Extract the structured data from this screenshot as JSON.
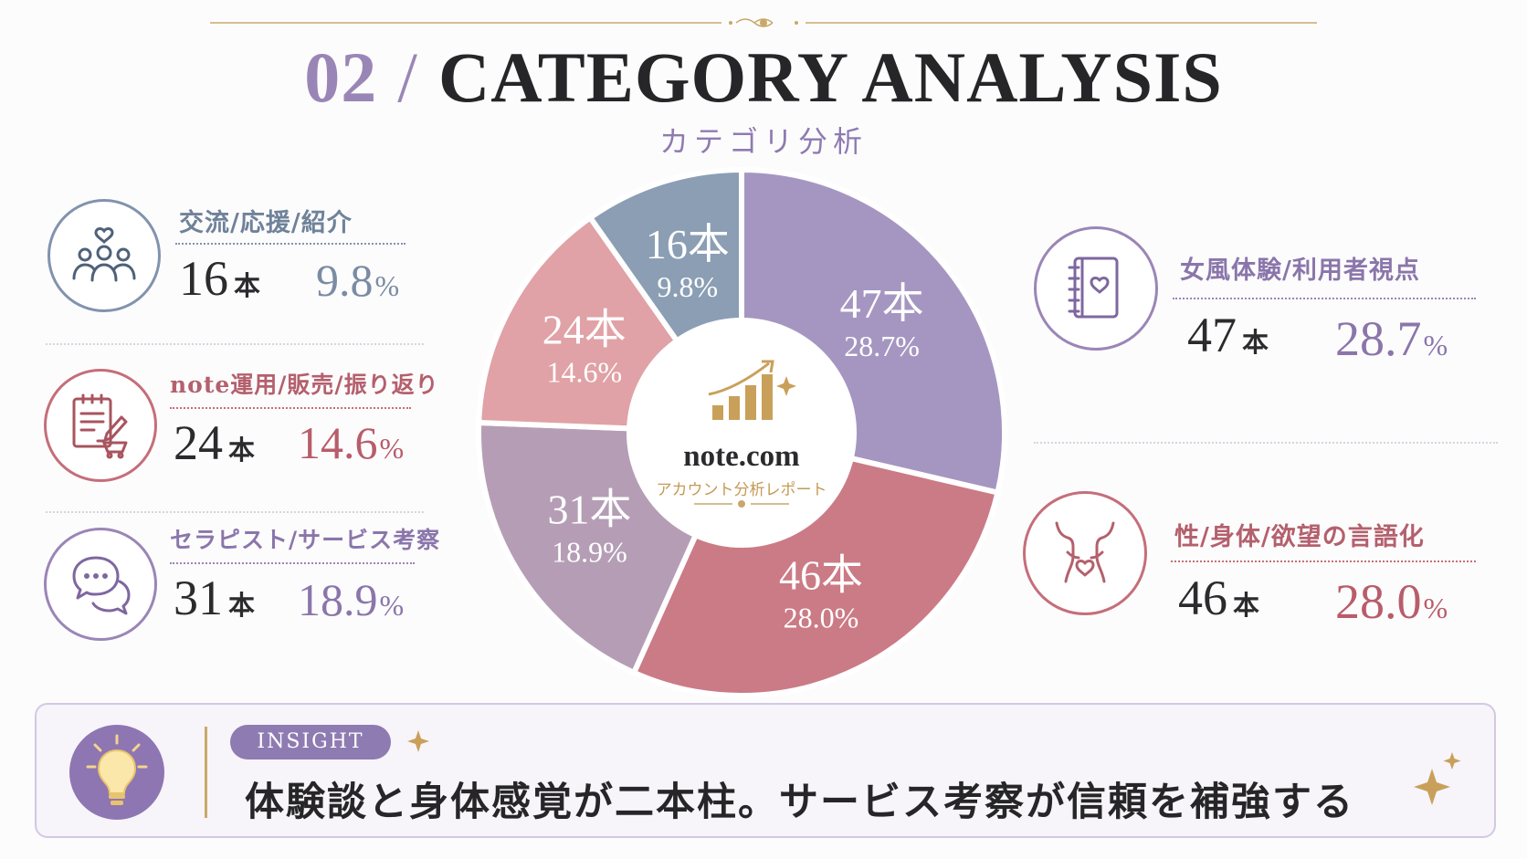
{
  "header": {
    "number": "02",
    "slash": "/",
    "title": "CATEGORY ANALYSIS",
    "subtitle": "カテゴリ分析"
  },
  "center": {
    "brand": "note.com",
    "caption": "アカウント分析レポート",
    "icon": "bar-chart-growth-icon"
  },
  "categories": [
    {
      "label": "交流/応援/紹介",
      "count": "16",
      "unit": "本",
      "percent": "9.8",
      "pct_sign": "%",
      "icon": "people-heart-icon",
      "color": "#8193ad"
    },
    {
      "label": "note運用/販売/振り返り",
      "count": "24",
      "unit": "本",
      "percent": "14.6",
      "pct_sign": "%",
      "icon": "clipboard-cart-icon",
      "color": "#c56e7a"
    },
    {
      "label": "セラピスト/サービス考察",
      "count": "31",
      "unit": "本",
      "percent": "18.9",
      "pct_sign": "%",
      "icon": "chat-bubbles-icon",
      "color": "#9a86b6"
    },
    {
      "label": "女風体験/利用者視点",
      "count": "47",
      "unit": "本",
      "percent": "28.7",
      "pct_sign": "%",
      "icon": "notebook-heart-icon",
      "color": "#9a86b6"
    },
    {
      "label": "性/身体/欲望の言語化",
      "count": "46",
      "unit": "本",
      "percent": "28.0",
      "pct_sign": "%",
      "icon": "body-heart-icon",
      "color": "#c56e7a"
    }
  ],
  "chart_data": {
    "type": "pie",
    "categories": [
      "女風体験/利用者視点",
      "性/身体/欲望の言語化",
      "セラピスト/サービス考察",
      "note運用/販売/振り返り",
      "交流/応援/紹介"
    ],
    "values": [
      47,
      46,
      31,
      24,
      16
    ],
    "percents": [
      28.7,
      28.0,
      18.9,
      14.6,
      9.8
    ],
    "slice_labels": [
      "47本",
      "46本",
      "31本",
      "24本",
      "16本"
    ],
    "percent_labels": [
      "28.7%",
      "28.0%",
      "18.9%",
      "14.6%",
      "9.8%"
    ],
    "colors": [
      "#a596c1",
      "#cb7b86",
      "#b59eb5",
      "#e0a2a6",
      "#8b9eb4"
    ],
    "donut": true
  },
  "insight": {
    "badge": "INSIGHT",
    "text": "体験談と身体感覚が二本柱。サービス考察が信頼を補強する",
    "icon": "lightbulb-icon"
  }
}
